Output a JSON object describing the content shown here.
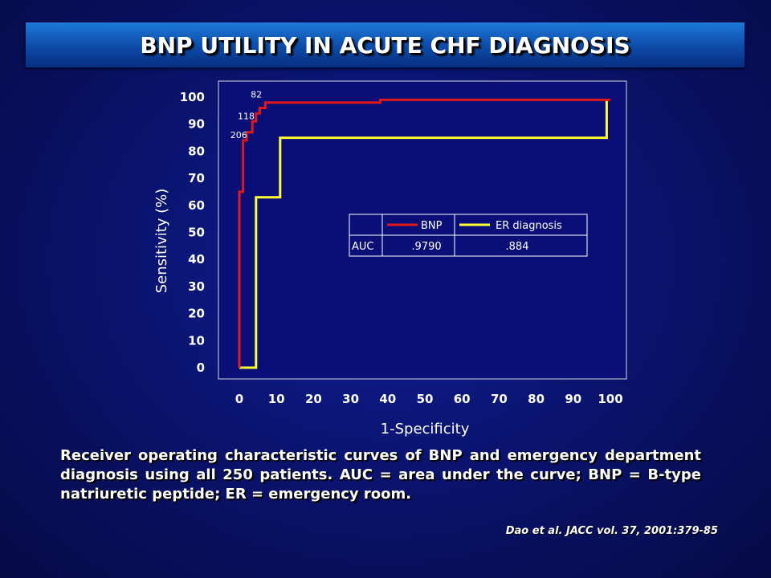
{
  "slide": {
    "title": "BNP UTILITY IN ACUTE CHF DIAGNOSIS",
    "caption": "Receiver operating characteristic curves of BNP and emergency department diagnosis using all 250 patients. AUC = area under the curve; BNP = B-type natriuretic peptide; ER = emergency room.",
    "citation": "Dao et al. JACC vol. 37, 2001:379-85"
  },
  "colors": {
    "plot_background": "#0a0f78",
    "bnp": "#e01818",
    "er": "#ffff30",
    "axis_text": "#ffffff"
  },
  "chart_data": {
    "type": "line",
    "title": "",
    "xlabel": "1-Specificity",
    "ylabel": "Sensitivity (%)",
    "xlim": [
      0,
      100
    ],
    "ylim": [
      0,
      100
    ],
    "xticks": [
      "0",
      "10",
      "20",
      "30",
      "40",
      "50",
      "60",
      "70",
      "80",
      "90",
      "100"
    ],
    "yticks": [
      "0",
      "10",
      "20",
      "30",
      "40",
      "50",
      "60",
      "70",
      "80",
      "90",
      "100"
    ],
    "grid": false,
    "series": [
      {
        "name": "BNP",
        "color": "#e01818",
        "step": true,
        "points": [
          [
            0,
            0
          ],
          [
            0,
            65
          ],
          [
            1,
            65
          ],
          [
            1,
            84
          ],
          [
            2,
            84
          ],
          [
            2,
            87
          ],
          [
            3.5,
            87
          ],
          [
            3.5,
            91
          ],
          [
            4.5,
            91
          ],
          [
            4.5,
            94
          ],
          [
            5.5,
            94
          ],
          [
            5.5,
            96
          ],
          [
            7,
            96
          ],
          [
            7,
            98
          ],
          [
            38,
            98
          ],
          [
            38,
            99
          ],
          [
            98,
            99
          ],
          [
            98,
            99
          ],
          [
            100,
            99
          ],
          [
            100,
            99
          ]
        ]
      },
      {
        "name": "ER diagnosis",
        "color": "#ffff30",
        "step": true,
        "points": [
          [
            0,
            0
          ],
          [
            4.5,
            0
          ],
          [
            4.5,
            63
          ],
          [
            11,
            63
          ],
          [
            11,
            85
          ],
          [
            99,
            85
          ],
          [
            99,
            99
          ]
        ]
      }
    ],
    "annotations": [
      {
        "text": "82",
        "x": 3.5,
        "y": 101
      },
      {
        "text": "118",
        "x": 0,
        "y": 93
      },
      {
        "text": "206",
        "x": -2,
        "y": 86
      }
    ],
    "legend_table": {
      "row_label": "AUC",
      "entries": [
        {
          "name": "BNP",
          "auc": ".9790"
        },
        {
          "name": "ER diagnosis",
          "auc": ".884"
        }
      ]
    }
  }
}
